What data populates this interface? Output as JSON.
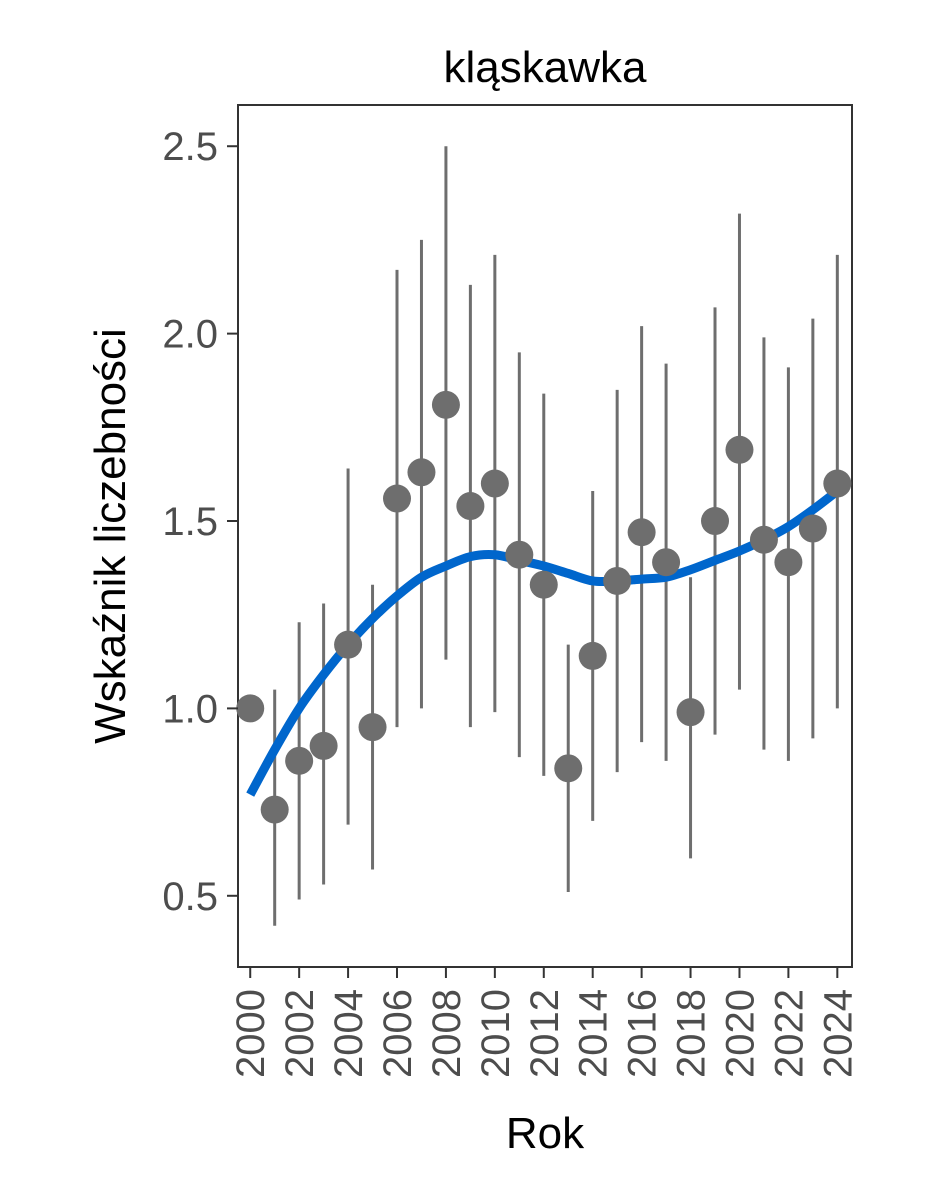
{
  "chart_data": {
    "type": "scatter",
    "title": "kląskawka",
    "xlabel": "Rok",
    "ylabel": "Wskaźnik liczebności",
    "xlim": [
      1999.5,
      2024.6
    ],
    "ylim": [
      0.31,
      2.61
    ],
    "x_ticks": [
      "2000",
      "2002",
      "2004",
      "2006",
      "2008",
      "2010",
      "2012",
      "2014",
      "2016",
      "2018",
      "2020",
      "2022",
      "2024"
    ],
    "y_ticks": [
      "0.5",
      "1.0",
      "1.5",
      "2.0",
      "2.5"
    ],
    "grid": false,
    "colors": {
      "points": "#6e6e6e",
      "trend": "#0066cc",
      "panel_border": "#333333"
    },
    "series": [
      {
        "kind": "points_with_error_bars",
        "x": [
          2000,
          2001,
          2002,
          2003,
          2004,
          2005,
          2006,
          2007,
          2008,
          2009,
          2010,
          2011,
          2012,
          2013,
          2014,
          2015,
          2016,
          2017,
          2018,
          2019,
          2020,
          2021,
          2022,
          2023,
          2024
        ],
        "y": [
          1.0,
          0.73,
          0.86,
          0.9,
          1.17,
          0.95,
          1.56,
          1.63,
          1.81,
          1.54,
          1.6,
          1.41,
          1.33,
          0.84,
          1.14,
          1.34,
          1.47,
          1.39,
          0.99,
          1.5,
          1.69,
          1.45,
          1.39,
          1.48,
          1.6
        ],
        "lower": [
          null,
          0.42,
          0.49,
          0.53,
          0.69,
          0.57,
          0.95,
          1.0,
          1.13,
          0.95,
          0.99,
          0.87,
          0.82,
          0.51,
          0.7,
          0.83,
          0.91,
          0.86,
          0.6,
          0.93,
          1.05,
          0.89,
          0.86,
          0.92,
          1.0
        ],
        "upper": [
          null,
          1.05,
          1.23,
          1.28,
          1.64,
          1.33,
          2.17,
          2.25,
          2.5,
          2.13,
          2.21,
          1.95,
          1.84,
          1.17,
          1.58,
          1.85,
          2.02,
          1.92,
          1.35,
          2.07,
          2.32,
          1.99,
          1.91,
          2.04,
          2.21
        ]
      },
      {
        "kind": "smooth_trend",
        "x": [
          2000,
          2001,
          2002,
          2003,
          2004,
          2005,
          2006,
          2007,
          2008,
          2009,
          2010,
          2011,
          2012,
          2013,
          2014,
          2015,
          2016,
          2017,
          2018,
          2019,
          2020,
          2021,
          2022,
          2023,
          2024
        ],
        "y": [
          0.77,
          0.89,
          1.0,
          1.09,
          1.17,
          1.24,
          1.3,
          1.35,
          1.38,
          1.405,
          1.41,
          1.395,
          1.38,
          1.36,
          1.34,
          1.34,
          1.345,
          1.35,
          1.37,
          1.395,
          1.42,
          1.45,
          1.485,
          1.53,
          1.58
        ]
      }
    ]
  }
}
